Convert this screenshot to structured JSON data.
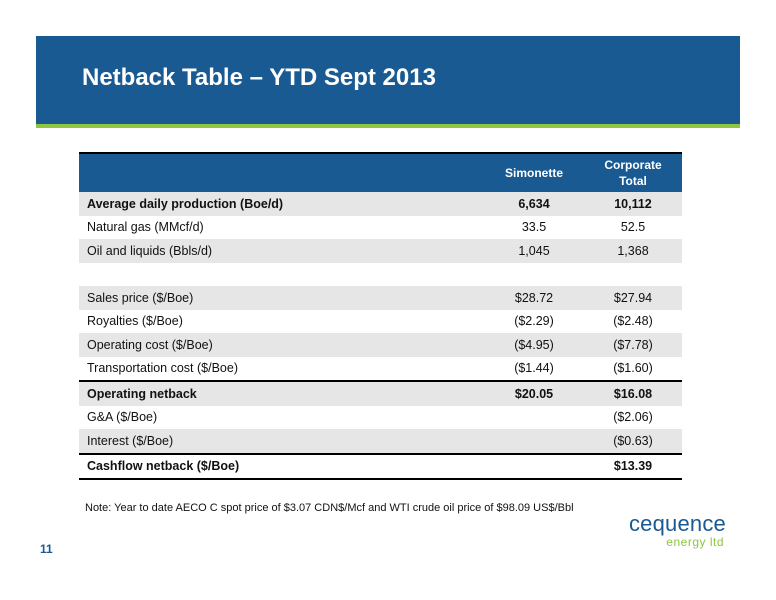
{
  "title": "Netback Table  – YTD Sept 2013",
  "table": {
    "headers": [
      "",
      "Simonette",
      "Corporate\nTotal"
    ],
    "rows": [
      {
        "label": "Average daily production (Boe/d)",
        "simonette": "6,634",
        "corporate": "10,112"
      },
      {
        "label": "Natural gas (MMcf/d)",
        "simonette": "33.5",
        "corporate": "52.5"
      },
      {
        "label": "Oil and liquids (Bbls/d)",
        "simonette": "1,045",
        "corporate": "1,368"
      },
      {
        "label": "",
        "simonette": "",
        "corporate": ""
      },
      {
        "label": "Sales price ($/Boe)",
        "simonette": "$28.72",
        "corporate": "$27.94"
      },
      {
        "label": "Royalties ($/Boe)",
        "simonette": "($2.29)",
        "corporate": "($2.48)"
      },
      {
        "label": "Operating cost ($/Boe)",
        "simonette": "($4.95)",
        "corporate": "($7.78)"
      },
      {
        "label": "Transportation cost ($/Boe)",
        "simonette": "($1.44)",
        "corporate": "($1.60)"
      },
      {
        "label": "Operating netback",
        "simonette": "$20.05",
        "corporate": "$16.08"
      },
      {
        "label": "G&A ($/Boe)",
        "simonette": "",
        "corporate": "($2.06)"
      },
      {
        "label": "Interest ($/Boe)",
        "simonette": "",
        "corporate": "($0.63)"
      },
      {
        "label": "Cashflow netback ($/Boe)",
        "simonette": "",
        "corporate": "$13.39"
      }
    ]
  },
  "note": "Note: Year to date AECO C spot price of $3.07 CDN$/Mcf and WTI crude oil price of $98.09 US$/Bbl",
  "page_number": "11",
  "logo": {
    "main": "cequence",
    "sub": "energy ltd"
  },
  "colors": {
    "banner": "#1a5a92",
    "accent": "#8dc63f",
    "row_shade": "#e6e6e6"
  }
}
